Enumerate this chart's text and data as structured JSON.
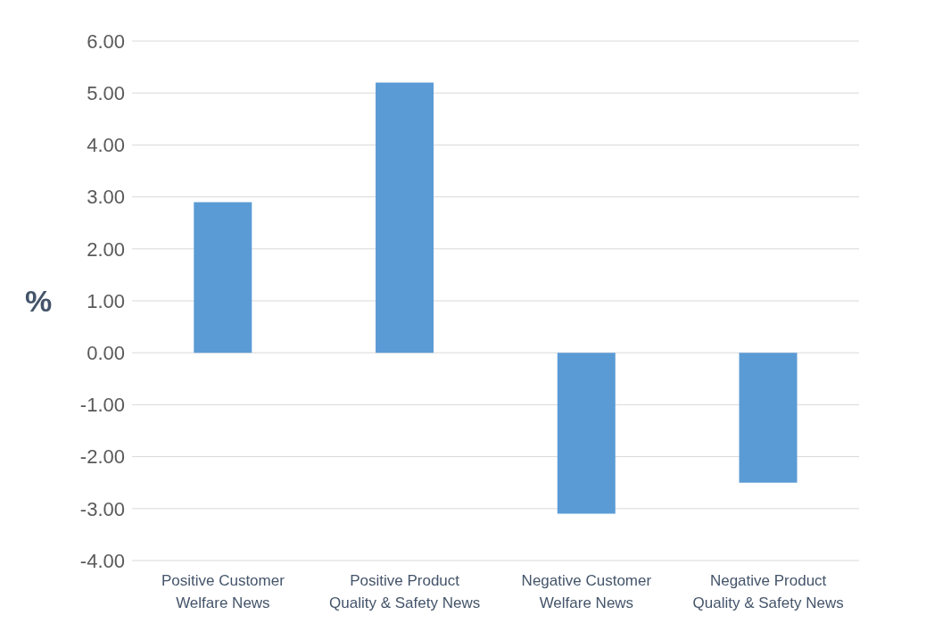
{
  "chart_data": {
    "type": "bar",
    "ylabel": "%",
    "categories": [
      "Positive Customer Welfare News",
      "Positive Product Quality & Safety News",
      "Negative Customer Welfare News",
      "Negative Product Quality & Safety News"
    ],
    "values": [
      2.9,
      5.2,
      -3.1,
      -2.5
    ],
    "color": "#5b9bd5",
    "ylim": [
      -4,
      6
    ],
    "yticks": [
      {
        "value": -4,
        "label": "-4.00"
      },
      {
        "value": -3,
        "label": "-3.00"
      },
      {
        "value": -2,
        "label": "-2.00"
      },
      {
        "value": -1,
        "label": "-1.00"
      },
      {
        "value": 0,
        "label": "0.00"
      },
      {
        "value": 1,
        "label": "1.00"
      },
      {
        "value": 2,
        "label": "2.00"
      },
      {
        "value": 3,
        "label": "3.00"
      },
      {
        "value": 4,
        "label": "4.00"
      },
      {
        "value": 5,
        "label": "5.00"
      },
      {
        "value": 6,
        "label": "6.00"
      }
    ],
    "grid": "y",
    "legend": false
  }
}
